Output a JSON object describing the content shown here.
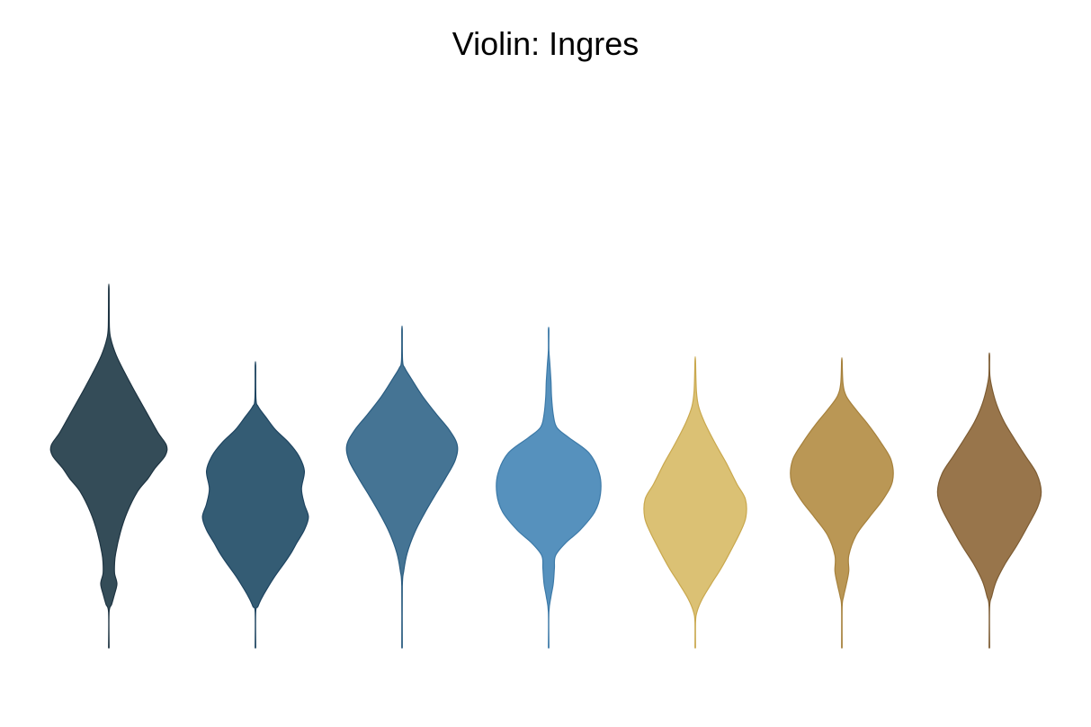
{
  "chart_data": {
    "type": "violin",
    "title": "Violin: Ingres",
    "xlabel": "",
    "ylabel": "",
    "grid": false,
    "axes_visible": false,
    "legend": "none",
    "ylim": [
      0,
      1
    ],
    "series": [
      {
        "color": "#344c58",
        "stroke": "#1e3442",
        "profile": [
          [
            0.0,
            0.005
          ],
          [
            0.07,
            0.005
          ],
          [
            0.085,
            0.05
          ],
          [
            0.105,
            0.1
          ],
          [
            0.125,
            0.14
          ],
          [
            0.145,
            0.1
          ],
          [
            0.165,
            0.1
          ],
          [
            0.185,
            0.12
          ],
          [
            0.225,
            0.2
          ],
          [
            0.265,
            0.32
          ],
          [
            0.305,
            0.5
          ],
          [
            0.33,
            0.68
          ],
          [
            0.35,
            0.8
          ],
          [
            0.375,
            0.98
          ],
          [
            0.395,
            1.0
          ],
          [
            0.42,
            0.85
          ],
          [
            0.46,
            0.65
          ],
          [
            0.5,
            0.45
          ],
          [
            0.54,
            0.26
          ],
          [
            0.57,
            0.13
          ],
          [
            0.6,
            0.04
          ],
          [
            0.625,
            0.01
          ],
          [
            0.7,
            0.004
          ]
        ]
      },
      {
        "color": "#345c74",
        "stroke": "#1e4460",
        "profile": [
          [
            0.0,
            0.005
          ],
          [
            0.07,
            0.005
          ],
          [
            0.08,
            0.04
          ],
          [
            0.095,
            0.1
          ],
          [
            0.115,
            0.2
          ],
          [
            0.14,
            0.34
          ],
          [
            0.165,
            0.5
          ],
          [
            0.185,
            0.62
          ],
          [
            0.205,
            0.72
          ],
          [
            0.23,
            0.85
          ],
          [
            0.255,
            0.92
          ],
          [
            0.28,
            0.85
          ],
          [
            0.31,
            0.8
          ],
          [
            0.345,
            0.85
          ],
          [
            0.375,
            0.75
          ],
          [
            0.4,
            0.58
          ],
          [
            0.425,
            0.35
          ],
          [
            0.45,
            0.18
          ],
          [
            0.47,
            0.05
          ],
          [
            0.485,
            0.01
          ],
          [
            0.55,
            0.004
          ]
        ]
      },
      {
        "color": "#457494",
        "stroke": "#2a5c80",
        "profile": [
          [
            0.0,
            0.005
          ],
          [
            0.12,
            0.005
          ],
          [
            0.15,
            0.03
          ],
          [
            0.185,
            0.09
          ],
          [
            0.225,
            0.22
          ],
          [
            0.26,
            0.38
          ],
          [
            0.295,
            0.56
          ],
          [
            0.33,
            0.75
          ],
          [
            0.365,
            0.92
          ],
          [
            0.395,
            0.96
          ],
          [
            0.425,
            0.82
          ],
          [
            0.455,
            0.6
          ],
          [
            0.49,
            0.36
          ],
          [
            0.525,
            0.16
          ],
          [
            0.545,
            0.05
          ],
          [
            0.56,
            0.01
          ],
          [
            0.62,
            0.004
          ]
        ]
      },
      {
        "color": "#5691bd",
        "stroke": "#3d7aa8",
        "profile": [
          [
            0.0,
            0.005
          ],
          [
            0.07,
            0.005
          ],
          [
            0.1,
            0.04
          ],
          [
            0.125,
            0.08
          ],
          [
            0.155,
            0.1
          ],
          [
            0.18,
            0.12
          ],
          [
            0.205,
            0.3
          ],
          [
            0.23,
            0.55
          ],
          [
            0.265,
            0.8
          ],
          [
            0.3,
            0.9
          ],
          [
            0.34,
            0.88
          ],
          [
            0.38,
            0.7
          ],
          [
            0.41,
            0.35
          ],
          [
            0.43,
            0.14
          ],
          [
            0.455,
            0.08
          ],
          [
            0.49,
            0.05
          ],
          [
            0.52,
            0.04
          ],
          [
            0.555,
            0.02
          ],
          [
            0.58,
            0.005
          ],
          [
            0.62,
            0.004
          ]
        ]
      },
      {
        "color": "#dbc174",
        "stroke": "#c9a84e",
        "profile": [
          [
            0.0,
            0.005
          ],
          [
            0.05,
            0.005
          ],
          [
            0.07,
            0.03
          ],
          [
            0.095,
            0.12
          ],
          [
            0.125,
            0.28
          ],
          [
            0.155,
            0.45
          ],
          [
            0.19,
            0.62
          ],
          [
            0.225,
            0.78
          ],
          [
            0.255,
            0.88
          ],
          [
            0.29,
            0.87
          ],
          [
            0.32,
            0.72
          ],
          [
            0.36,
            0.54
          ],
          [
            0.4,
            0.34
          ],
          [
            0.44,
            0.16
          ],
          [
            0.47,
            0.06
          ],
          [
            0.5,
            0.02
          ],
          [
            0.56,
            0.004
          ]
        ]
      },
      {
        "color": "#ba9755",
        "stroke": "#a6813c",
        "profile": [
          [
            0.0,
            0.005
          ],
          [
            0.08,
            0.005
          ],
          [
            0.1,
            0.03
          ],
          [
            0.125,
            0.08
          ],
          [
            0.15,
            0.12
          ],
          [
            0.18,
            0.12
          ],
          [
            0.22,
            0.25
          ],
          [
            0.255,
            0.48
          ],
          [
            0.29,
            0.72
          ],
          [
            0.325,
            0.88
          ],
          [
            0.365,
            0.86
          ],
          [
            0.4,
            0.68
          ],
          [
            0.435,
            0.46
          ],
          [
            0.465,
            0.24
          ],
          [
            0.49,
            0.08
          ],
          [
            0.515,
            0.02
          ],
          [
            0.56,
            0.004
          ]
        ]
      },
      {
        "color": "#98754b",
        "stroke": "#7d5c33",
        "profile": [
          [
            0.0,
            0.005
          ],
          [
            0.08,
            0.005
          ],
          [
            0.1,
            0.04
          ],
          [
            0.13,
            0.12
          ],
          [
            0.165,
            0.28
          ],
          [
            0.2,
            0.48
          ],
          [
            0.24,
            0.68
          ],
          [
            0.275,
            0.84
          ],
          [
            0.305,
            0.9
          ],
          [
            0.34,
            0.82
          ],
          [
            0.375,
            0.62
          ],
          [
            0.41,
            0.42
          ],
          [
            0.44,
            0.26
          ],
          [
            0.47,
            0.14
          ],
          [
            0.5,
            0.06
          ],
          [
            0.53,
            0.01
          ],
          [
            0.57,
            0.004
          ]
        ]
      }
    ]
  }
}
